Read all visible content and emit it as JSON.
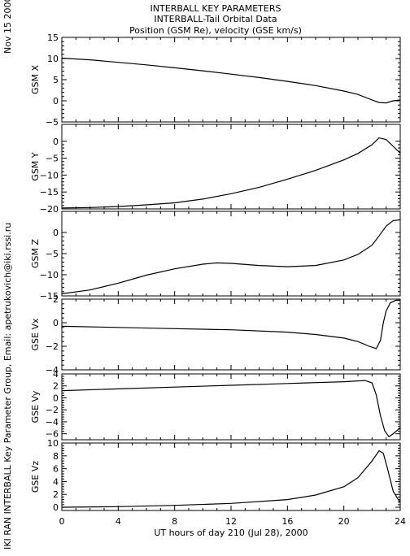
{
  "header": {
    "title_lines": [
      "INTERBALL KEY PARAMETERS",
      "INTERBALL-Tail Orbital Data",
      "Position (GSM Re), velocity (GSE km/s)"
    ],
    "date_label": "Nov 15 2000",
    "credit": "IKI RAN INTERBALL Key Parameter Group, Email: apetrukovich@iki.rssi.ru"
  },
  "chart_data": {
    "type": "line",
    "title": "Position (GSM Re), velocity (GSE km/s)",
    "xlabel": "UT hours of day 210 (Jul 28), 2000",
    "xlim": [
      0,
      24
    ],
    "xticks": [
      0,
      4,
      8,
      12,
      16,
      20,
      24
    ],
    "panels": [
      {
        "name": "gsm-x",
        "ylabel": "GSM X",
        "ylim": [
          -5,
          15
        ],
        "yticks": [
          -5,
          0,
          5,
          10,
          15
        ],
        "x": [
          0,
          2,
          4,
          6,
          8,
          10,
          12,
          14,
          16,
          18,
          20,
          21,
          22,
          22.5,
          23,
          23.5,
          24
        ],
        "y": [
          10.1,
          9.7,
          9.1,
          8.5,
          7.8,
          7.1,
          6.3,
          5.5,
          4.6,
          3.6,
          2.3,
          1.5,
          0.2,
          -0.4,
          -0.5,
          0.0,
          0.2
        ]
      },
      {
        "name": "gsm-y",
        "ylabel": "GSM Y",
        "ylim": [
          -20,
          5
        ],
        "yticks": [
          -20,
          -15,
          -10,
          -5,
          0
        ],
        "x": [
          0,
          2,
          4,
          6,
          8,
          10,
          12,
          14,
          16,
          18,
          20,
          21,
          22,
          22.5,
          23,
          23.5,
          24
        ],
        "y": [
          -19.7,
          -19.6,
          -19.3,
          -18.8,
          -18.2,
          -17.1,
          -15.5,
          -13.6,
          -11.2,
          -8.6,
          -5.5,
          -3.6,
          -1.0,
          1.0,
          0.5,
          -1.5,
          -3.5
        ]
      },
      {
        "name": "gsm-z",
        "ylabel": "GSM Z",
        "ylim": [
          -15,
          5
        ],
        "yticks": [
          -15,
          -10,
          -5,
          0
        ],
        "x": [
          0,
          2,
          4,
          6,
          8,
          10,
          11,
          12,
          14,
          16,
          18,
          20,
          21,
          22,
          22.5,
          23,
          23.5,
          24
        ],
        "y": [
          -14.5,
          -13.6,
          -12.0,
          -10.1,
          -8.6,
          -7.5,
          -7.2,
          -7.3,
          -7.8,
          -8.1,
          -7.8,
          -6.5,
          -5.2,
          -3.0,
          -0.8,
          1.5,
          2.8,
          3.0
        ]
      },
      {
        "name": "gse-vx",
        "ylabel": "GSE Vx",
        "ylim": [
          -4,
          2
        ],
        "yticks": [
          -4,
          -2,
          0,
          2
        ],
        "x": [
          0,
          4,
          8,
          12,
          16,
          18,
          20,
          21,
          21.8,
          22.3,
          22.6,
          22.8,
          23.0,
          23.3,
          23.7,
          24
        ],
        "y": [
          -0.3,
          -0.4,
          -0.5,
          -0.6,
          -0.8,
          -1.0,
          -1.3,
          -1.6,
          -2.0,
          -2.2,
          -1.5,
          0.0,
          1.0,
          1.7,
          1.9,
          1.9
        ]
      },
      {
        "name": "gse-vy",
        "ylabel": "GSE Vy",
        "ylim": [
          -7,
          4
        ],
        "yticks": [
          -6,
          -4,
          -2,
          0,
          2,
          4
        ],
        "x": [
          0,
          4,
          8,
          12,
          16,
          20,
          21.5,
          22.0,
          22.3,
          22.6,
          22.9,
          23.2,
          23.5,
          24
        ],
        "y": [
          1.2,
          1.5,
          1.8,
          2.1,
          2.4,
          2.7,
          2.9,
          2.5,
          0.5,
          -3.0,
          -5.5,
          -6.5,
          -6.0,
          -5.0
        ]
      },
      {
        "name": "gse-vz",
        "ylabel": "GSE Vz",
        "ylim": [
          -0.5,
          10
        ],
        "yticks": [
          0,
          2,
          4,
          6,
          8,
          10
        ],
        "x": [
          0,
          4,
          8,
          12,
          16,
          18,
          20,
          21,
          22,
          22.5,
          22.8,
          23.1,
          23.5,
          24
        ],
        "y": [
          0.0,
          0.1,
          0.3,
          0.6,
          1.2,
          1.9,
          3.2,
          4.6,
          7.2,
          8.8,
          8.4,
          6.0,
          2.5,
          0.7
        ]
      }
    ]
  }
}
